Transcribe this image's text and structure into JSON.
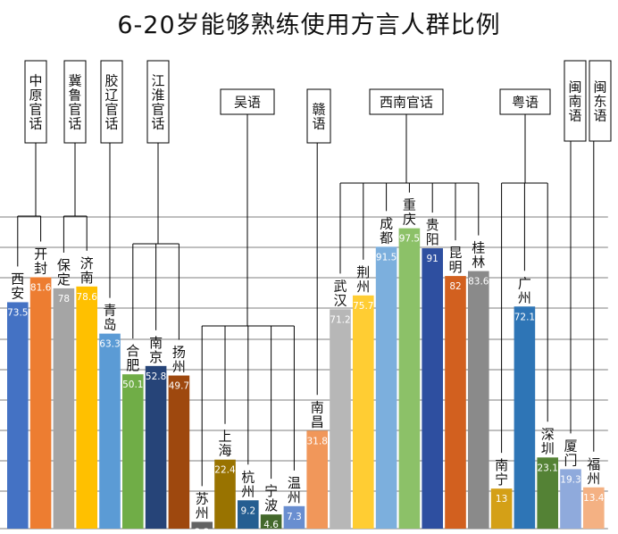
{
  "chart_data": {
    "type": "bar",
    "title": "6-20岁能够熟练使用方言人群比例",
    "ylim": [
      0,
      100
    ],
    "grid": true,
    "legend": "none",
    "bars": [
      {
        "name": "西安",
        "value": 73.5,
        "label": "73.5",
        "color": "#4472c4"
      },
      {
        "name": "开封",
        "value": 81.6,
        "label": "81.6",
        "color": "#ed7d31"
      },
      {
        "name": "保定",
        "value": 78,
        "label": "78",
        "color": "#a5a5a5"
      },
      {
        "name": "济南",
        "value": 78.6,
        "label": "78.6",
        "color": "#ffc000"
      },
      {
        "name": "青岛",
        "value": 63.3,
        "label": "63.3",
        "color": "#5b9bd5"
      },
      {
        "name": "合肥",
        "value": 50.1,
        "label": "50.1",
        "color": "#70ad47"
      },
      {
        "name": "南京",
        "value": 52.8,
        "label": "52.8",
        "color": "#264478"
      },
      {
        "name": "扬州",
        "value": 49.7,
        "label": "49.7",
        "color": "#9e480e"
      },
      {
        "name": "苏州",
        "value": 2.2,
        "label": "2.2",
        "color": "#636363"
      },
      {
        "name": "上海",
        "value": 22.4,
        "label": "22.4",
        "color": "#997300"
      },
      {
        "name": "杭州",
        "value": 9.2,
        "label": "9.2",
        "color": "#255e91"
      },
      {
        "name": "宁波",
        "value": 4.6,
        "label": "4.6",
        "color": "#43682b"
      },
      {
        "name": "温州",
        "value": 7.3,
        "label": "7.3",
        "color": "#698ed0"
      },
      {
        "name": "南昌",
        "value": 31.8,
        "label": "31.8",
        "color": "#f1975a"
      },
      {
        "name": "武汉",
        "value": 71.2,
        "label": "71.2",
        "color": "#b7b7b7"
      },
      {
        "name": "荆州",
        "value": 75.7,
        "label": "75.7",
        "color": "#ffcd33"
      },
      {
        "name": "成都",
        "value": 91.5,
        "label": "91.5",
        "color": "#7cafdd"
      },
      {
        "name": "重庆",
        "value": 97.5,
        "label": "97.5",
        "color": "#8cc168"
      },
      {
        "name": "贵阳",
        "value": 91,
        "label": "91",
        "color": "#2e4fa0"
      },
      {
        "name": "昆明",
        "value": 82,
        "label": "82",
        "color": "#d2601f"
      },
      {
        "name": "桂林",
        "value": 83.6,
        "label": "83.6",
        "color": "#8a8a8a"
      },
      {
        "name": "南宁",
        "value": 13,
        "label": "13",
        "color": "#d4a017"
      },
      {
        "name": "广州",
        "value": 72.1,
        "label": "72.1",
        "color": "#2e75b6"
      },
      {
        "name": "深圳",
        "value": 23.1,
        "label": "23.1",
        "color": "#548235"
      },
      {
        "name": "厦门",
        "value": 19.3,
        "label": "19.3",
        "color": "#8faadc"
      },
      {
        "name": "福州",
        "value": 13.4,
        "label": "13.4",
        "color": "#f4b183"
      }
    ],
    "groups": [
      {
        "name": "中原官话",
        "members": [
          "西安",
          "开封"
        ]
      },
      {
        "name": "冀鲁官话",
        "members": [
          "保定",
          "济南"
        ]
      },
      {
        "name": "胶辽官话",
        "members": [
          "青岛"
        ]
      },
      {
        "name": "江淮官话",
        "members": [
          "合肥",
          "南京",
          "扬州"
        ]
      },
      {
        "name": "吴语",
        "members": [
          "苏州",
          "上海",
          "杭州",
          "宁波",
          "温州"
        ]
      },
      {
        "name": "赣语",
        "members": [
          "南昌"
        ]
      },
      {
        "name": "西南官话",
        "members": [
          "武汉",
          "荆州",
          "成都",
          "重庆",
          "贵阳",
          "昆明",
          "桂林"
        ]
      },
      {
        "name": "粤语",
        "members": [
          "南宁",
          "广州",
          "深圳"
        ]
      },
      {
        "name": "闽南语",
        "members": [
          "厦门"
        ]
      },
      {
        "name": "闽东语",
        "members": [
          "福州"
        ]
      }
    ]
  }
}
